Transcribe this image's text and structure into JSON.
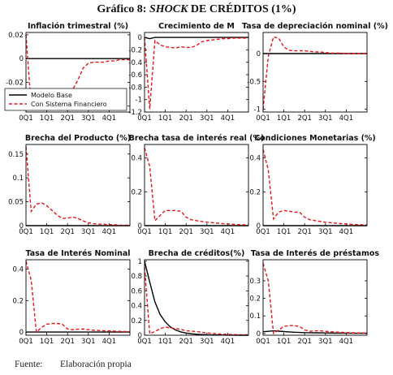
{
  "page": {
    "title_prefix": "Gráfico 8: ",
    "title_emph": "SHOCK",
    "title_suffix": " DE CRÉDITOS (1%)",
    "source_label": "Fuente:",
    "source_text": "Elaboración propia"
  },
  "colors": {
    "base": "#000000",
    "financial": "#e8141b"
  },
  "legend": {
    "items": [
      "Modelo Base",
      "Con Sistema Financiero"
    ],
    "placement": "lower-left of first panel"
  },
  "chart_data": [
    {
      "type": "line",
      "title": "Inflación trimestral (%)",
      "x_ticks": [
        "0Q1",
        "1Q1",
        "2Q1",
        "3Q1",
        "4Q1"
      ],
      "ylim": [
        -0.045,
        0.022
      ],
      "y_ticks": [
        "0.02",
        "0",
        "-0.02",
        "-0.04"
      ],
      "series": [
        {
          "name": "Modelo Base",
          "x": [
            0,
            20
          ],
          "values": [
            0,
            0
          ]
        },
        {
          "name": "Con Sistema Financiero",
          "x": [
            0,
            1,
            2,
            3,
            4,
            5,
            6,
            7,
            8,
            9,
            10,
            11,
            12,
            13,
            14,
            15,
            16,
            17,
            18,
            19,
            20
          ],
          "values": [
            0.02,
            -0.04,
            -0.035,
            -0.03,
            -0.028,
            -0.027,
            -0.026,
            -0.028,
            -0.028,
            -0.026,
            -0.018,
            -0.008,
            -0.004,
            -0.003,
            -0.003,
            -0.003,
            -0.002,
            -0.002,
            -0.001,
            -0.001,
            -0.001
          ]
        }
      ]
    },
    {
      "type": "line",
      "title": "Crecimiento de M",
      "x_ticks": [
        "0Q1",
        "1Q1",
        "2Q1",
        "3Q1",
        "4Q1"
      ],
      "ylim": [
        -1.2,
        0.08
      ],
      "y_ticks": [
        "0",
        "-0.2",
        "-0.4",
        "-0.6",
        "-0.8",
        "-1",
        "-1.2"
      ],
      "series": [
        {
          "name": "Modelo Base",
          "x": [
            0,
            1,
            2,
            3,
            4,
            20
          ],
          "values": [
            0,
            -0.02,
            0,
            0,
            0,
            0
          ]
        },
        {
          "name": "Con Sistema Financiero",
          "x": [
            0,
            1,
            2,
            3,
            4,
            5,
            6,
            7,
            8,
            9,
            10,
            11,
            12,
            13,
            14,
            15,
            16,
            17,
            18,
            19,
            20
          ],
          "values": [
            0,
            -1.15,
            -0.05,
            -0.12,
            -0.15,
            -0.16,
            -0.17,
            -0.15,
            -0.16,
            -0.16,
            -0.13,
            -0.07,
            -0.05,
            -0.04,
            -0.03,
            -0.02,
            -0.02,
            -0.01,
            -0.01,
            -0.01,
            -0.01
          ]
        }
      ]
    },
    {
      "type": "line",
      "title": "Tasa de depreciación nominal (%)",
      "x_ticks": [
        "0Q1",
        "1Q1",
        "2Q1",
        "3Q1",
        "4Q1"
      ],
      "ylim": [
        -1.05,
        0.38
      ],
      "y_ticks": [
        "0",
        "-0.5",
        "-1"
      ],
      "series": [
        {
          "name": "Modelo Base",
          "x": [
            0,
            20
          ],
          "values": [
            0,
            0
          ]
        },
        {
          "name": "Con Sistema Financiero",
          "x": [
            0,
            1,
            2,
            3,
            4,
            5,
            6,
            7,
            8,
            9,
            10,
            11,
            12,
            13,
            14,
            15,
            16,
            17,
            18,
            19,
            20
          ],
          "values": [
            -1.0,
            -0.05,
            0.3,
            0.28,
            0.12,
            0.06,
            0.05,
            0.05,
            0.05,
            0.04,
            0.03,
            0.03,
            0.02,
            0.01,
            0.01,
            0.01,
            0.0,
            0.0,
            0.0,
            0.0,
            0.0
          ]
        }
      ]
    },
    {
      "type": "line",
      "title": "Brecha del Producto (%)",
      "x_ticks": [
        "0Q1",
        "1Q1",
        "2Q1",
        "3Q1",
        "4Q1"
      ],
      "ylim": [
        0,
        0.17
      ],
      "y_ticks": [
        "0.15",
        "0.1",
        "0.05",
        "0"
      ],
      "series": [
        {
          "name": "Modelo Base",
          "x": [
            0,
            20
          ],
          "values": [
            0,
            0
          ]
        },
        {
          "name": "Con Sistema Financiero",
          "x": [
            0,
            1,
            2,
            3,
            4,
            5,
            6,
            7,
            8,
            9,
            10,
            11,
            12,
            13,
            14,
            15,
            16,
            17,
            18,
            19,
            20
          ],
          "values": [
            0.165,
            0.03,
            0.045,
            0.048,
            0.042,
            0.032,
            0.022,
            0.015,
            0.016,
            0.018,
            0.015,
            0.01,
            0.006,
            0.004,
            0.003,
            0.003,
            0.002,
            0.002,
            0.001,
            0.001,
            0.001
          ]
        }
      ]
    },
    {
      "type": "line",
      "title": "Brecha tasa de interés real (%)",
      "x_ticks": [
        "0Q1",
        "1Q1",
        "2Q1",
        "3Q1",
        "4Q1"
      ],
      "ylim": [
        0,
        0.48
      ],
      "y_ticks": [
        "0.4",
        "0.2",
        "0"
      ],
      "series": [
        {
          "name": "Modelo Base",
          "x": [
            0,
            20
          ],
          "values": [
            0,
            0
          ]
        },
        {
          "name": "Con Sistema Financiero",
          "x": [
            0,
            1,
            2,
            3,
            4,
            5,
            6,
            7,
            8,
            9,
            10,
            11,
            12,
            13,
            14,
            15,
            16,
            17,
            18,
            19,
            20
          ],
          "values": [
            0.46,
            0.35,
            0.03,
            0.06,
            0.09,
            0.09,
            0.09,
            0.085,
            0.05,
            0.035,
            0.03,
            0.025,
            0.02,
            0.018,
            0.015,
            0.012,
            0.01,
            0.008,
            0.006,
            0.005,
            0.004
          ]
        }
      ]
    },
    {
      "type": "line",
      "title": "Condiciones Monetarias (%)",
      "x_ticks": [
        "0Q1",
        "1Q1",
        "2Q1",
        "3Q1",
        "4Q1"
      ],
      "ylim": [
        0,
        0.48
      ],
      "y_ticks": [
        "0.4",
        "0.2",
        "0"
      ],
      "series": [
        {
          "name": "Modelo Base",
          "x": [
            0,
            20
          ],
          "values": [
            0,
            0
          ]
        },
        {
          "name": "Con Sistema Financiero",
          "x": [
            0,
            1,
            2,
            3,
            4,
            5,
            6,
            7,
            8,
            9,
            10,
            11,
            12,
            13,
            14,
            15,
            16,
            17,
            18,
            19,
            20
          ],
          "values": [
            0.45,
            0.33,
            0.04,
            0.08,
            0.09,
            0.085,
            0.08,
            0.08,
            0.05,
            0.035,
            0.03,
            0.025,
            0.02,
            0.018,
            0.015,
            0.012,
            0.01,
            0.008,
            0.006,
            0.005,
            0.004
          ]
        }
      ]
    },
    {
      "type": "line",
      "title": "Tasa de Interés Nominal",
      "x_ticks": [
        "0Q1",
        "1Q1",
        "2Q1",
        "3Q1",
        "4Q1"
      ],
      "ylim": [
        -0.02,
        0.46
      ],
      "y_ticks": [
        "0.4",
        "0.2",
        "0"
      ],
      "series": [
        {
          "name": "Modelo Base",
          "x": [
            0,
            20
          ],
          "values": [
            0,
            0
          ]
        },
        {
          "name": "Con Sistema Financiero",
          "x": [
            0,
            1,
            2,
            3,
            4,
            5,
            6,
            7,
            8,
            9,
            10,
            11,
            12,
            13,
            14,
            15,
            16,
            17,
            18,
            19,
            20
          ],
          "values": [
            0.45,
            0.33,
            0.0,
            0.03,
            0.05,
            0.055,
            0.055,
            0.05,
            0.02,
            0.015,
            0.018,
            0.02,
            0.015,
            0.012,
            0.01,
            0.008,
            0.008,
            0.006,
            0.005,
            0.004,
            0.004
          ]
        }
      ]
    },
    {
      "type": "line",
      "title": "Brecha de créditos(%)",
      "x_ticks": [
        "0Q1",
        "1Q1",
        "2Q1",
        "3Q1",
        "4Q1"
      ],
      "ylim": [
        0,
        1.02
      ],
      "y_ticks": [
        "1",
        "0.8",
        "0.6",
        "0.4",
        "0.2",
        "0"
      ],
      "series": [
        {
          "name": "Modelo Base",
          "x": [
            0,
            1,
            2,
            3,
            4,
            5,
            6,
            7,
            8,
            9,
            10,
            11,
            12,
            13,
            14,
            15,
            16,
            17,
            18,
            19,
            20
          ],
          "values": [
            1.0,
            0.72,
            0.45,
            0.28,
            0.18,
            0.11,
            0.07,
            0.045,
            0.03,
            0.02,
            0.013,
            0.009,
            0.006,
            0.004,
            0.003,
            0.002,
            0.001,
            0.001,
            0.0,
            0.0,
            0.0
          ]
        },
        {
          "name": "Con Sistema Financiero",
          "x": [
            0,
            1,
            2,
            3,
            4,
            5,
            6,
            7,
            8,
            9,
            10,
            11,
            12,
            13,
            14,
            15,
            16,
            17,
            18,
            19,
            20
          ],
          "values": [
            0.92,
            0.02,
            0.05,
            0.09,
            0.11,
            0.1,
            0.09,
            0.08,
            0.06,
            0.055,
            0.05,
            0.04,
            0.03,
            0.025,
            0.02,
            0.015,
            0.012,
            0.01,
            0.008,
            0.006,
            0.005
          ]
        }
      ]
    },
    {
      "type": "line",
      "title": "Tasa de Interés de préstamos",
      "x_ticks": [
        "0Q1",
        "1Q1",
        "2Q1",
        "3Q1",
        "4Q1"
      ],
      "ylim": [
        -0.01,
        0.42
      ],
      "y_ticks": [
        "0.3",
        "0.2",
        "0.1",
        "0"
      ],
      "series": [
        {
          "name": "Modelo Base",
          "x": [
            0,
            1,
            2,
            3,
            4,
            5,
            6,
            8,
            10,
            12,
            14,
            16,
            18,
            20
          ],
          "values": [
            0.01,
            0.012,
            0.015,
            0.013,
            0.011,
            0.009,
            0.007,
            0.005,
            0.004,
            0.003,
            0.002,
            0.002,
            0.001,
            0.001
          ]
        },
        {
          "name": "Con Sistema Financiero",
          "x": [
            0,
            1,
            2,
            3,
            4,
            5,
            6,
            7,
            8,
            9,
            10,
            11,
            12,
            13,
            14,
            15,
            16,
            17,
            18,
            19,
            20
          ],
          "values": [
            0.4,
            0.3,
            0.0,
            0.02,
            0.04,
            0.045,
            0.045,
            0.04,
            0.02,
            0.012,
            0.015,
            0.015,
            0.012,
            0.01,
            0.008,
            0.006,
            0.005,
            0.004,
            0.003,
            0.003,
            0.002
          ]
        }
      ]
    }
  ]
}
